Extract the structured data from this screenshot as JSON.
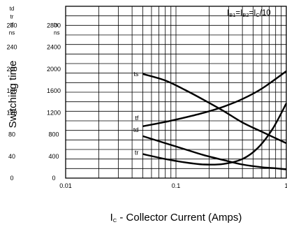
{
  "chart_data": {
    "type": "line",
    "xscale": "log",
    "xlim": [
      0.01,
      1
    ],
    "x_ticks": [
      "0.01",
      "0.1",
      "1"
    ],
    "ylabel": "Switching time",
    "xlabel_prefix": "I",
    "xlabel_sub": "C",
    "xlabel_rest": " - Collector Current (Amps)",
    "condition": {
      "part1": "I",
      "sub1": "B1",
      "part2": "=I",
      "sub2": "B2",
      "part3": "=I",
      "sub3": "C",
      "part4": "/10"
    },
    "axis_left": {
      "header": [
        "td",
        "tr",
        "tf",
        "ns"
      ],
      "range": [
        0,
        280
      ],
      "ticks": [
        "0",
        "40",
        "80",
        "120",
        "160",
        "200",
        "240",
        "280"
      ]
    },
    "axis_right": {
      "header": [
        "ts",
        "ns"
      ],
      "range": [
        0,
        2800
      ],
      "ticks": [
        "0",
        "400",
        "800",
        "1200",
        "1600",
        "2000",
        "2400",
        "2800"
      ]
    },
    "series": [
      {
        "name": "ts",
        "axis": "ts",
        "x": [
          0.05,
          0.08,
          0.12,
          0.18,
          0.27,
          0.4,
          0.6,
          1.0
        ],
        "y": [
          1910,
          1790,
          1620,
          1430,
          1230,
          1020,
          850,
          640
        ]
      },
      {
        "name": "tf",
        "axis": "td_tr_tf",
        "x": [
          0.05,
          0.08,
          0.12,
          0.18,
          0.27,
          0.4,
          0.6,
          1.0
        ],
        "y": [
          95,
          103,
          111,
          120,
          131,
          145,
          164,
          196
        ]
      },
      {
        "name": "td",
        "axis": "td_tr_tf",
        "x": [
          0.05,
          0.08,
          0.12,
          0.18,
          0.27,
          0.4,
          0.6,
          0.8,
          1.0
        ],
        "y": [
          77,
          64,
          53,
          42,
          33,
          25,
          20,
          18,
          16
        ]
      },
      {
        "name": "tr",
        "axis": "td_tr_tf",
        "x": [
          0.05,
          0.08,
          0.12,
          0.18,
          0.27,
          0.4,
          0.55,
          0.75,
          1.0
        ],
        "y": [
          44,
          35,
          29,
          25,
          26,
          35,
          55,
          90,
          137
        ]
      }
    ]
  }
}
